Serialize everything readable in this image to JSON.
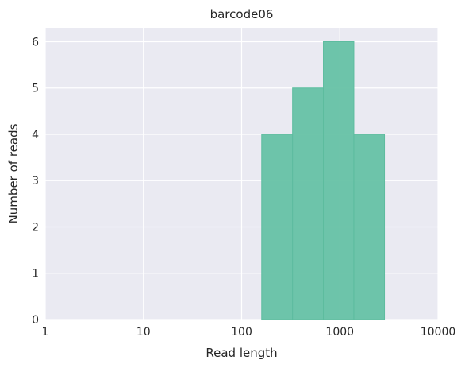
{
  "chart_data": {
    "type": "bar",
    "title": "barcode06",
    "xlabel": "Read length",
    "ylabel": "Number of reads",
    "x_scale": "log",
    "xlim": [
      1,
      10000
    ],
    "ylim": [
      0,
      6.3
    ],
    "x_ticks": [
      1,
      10,
      100,
      1000,
      10000
    ],
    "x_tick_labels": [
      "1",
      "10",
      "100",
      "1000",
      "10000"
    ],
    "y_ticks": [
      0,
      1,
      2,
      3,
      4,
      5,
      6
    ],
    "y_tick_labels": [
      "0",
      "1",
      "2",
      "3",
      "4",
      "5",
      "6"
    ],
    "grid": true,
    "bins": [
      {
        "x0": 160,
        "x1": 330,
        "count": 4
      },
      {
        "x0": 330,
        "x1": 680,
        "count": 5
      },
      {
        "x0": 680,
        "x1": 1390,
        "count": 6
      },
      {
        "x0": 1390,
        "x1": 2850,
        "count": 4
      }
    ],
    "colors": {
      "background": "#eaeaf2",
      "bar_fill": "#66c2a5",
      "bar_edge": "#5dbc9f",
      "grid": "#ffffff"
    }
  }
}
